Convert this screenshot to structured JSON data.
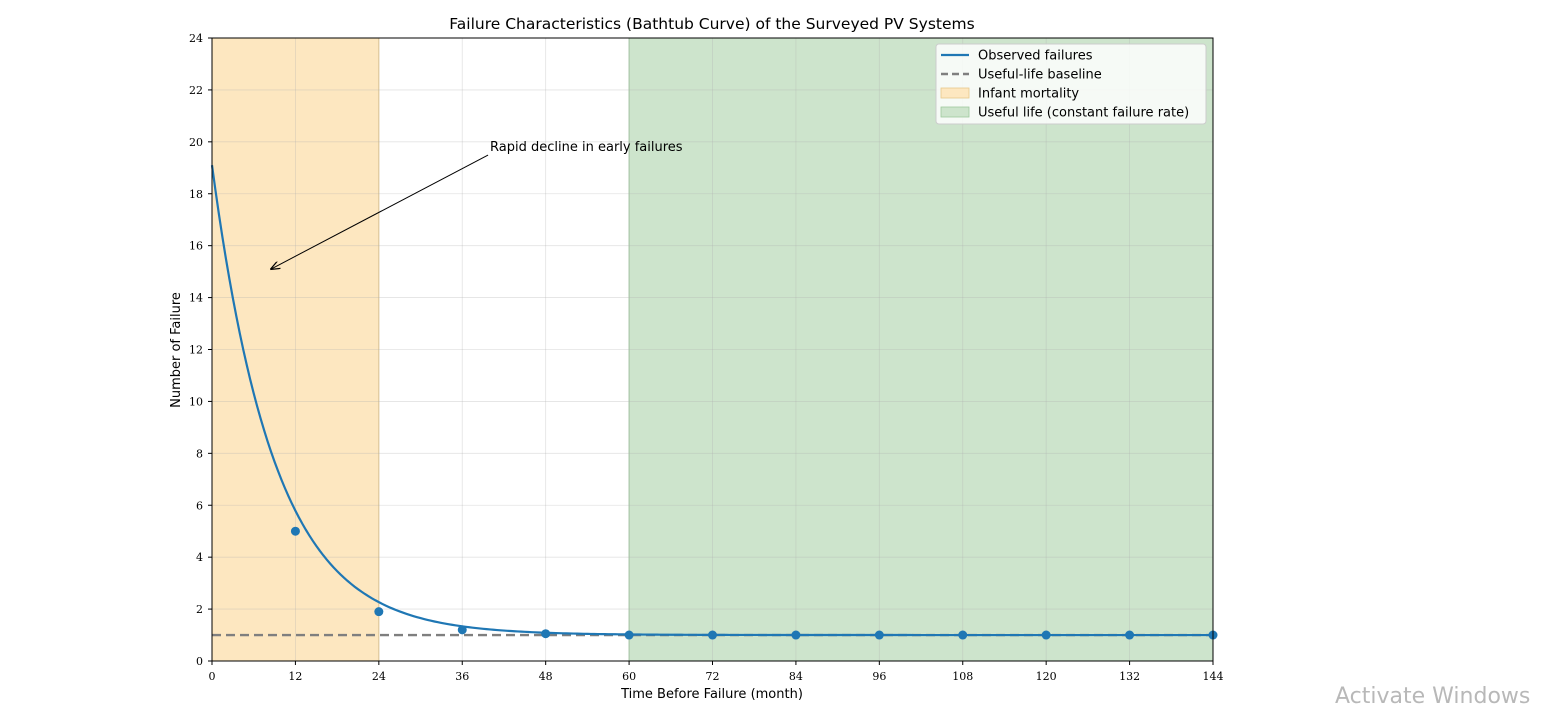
{
  "chart_data": {
    "type": "line",
    "title": "Failure Characteristics (Bathtub Curve) of the Surveyed PV Systems",
    "xlabel": "Time Before Failure (month)",
    "ylabel": "Number of Failure",
    "xlim": [
      0,
      144
    ],
    "ylim": [
      0,
      24
    ],
    "xticks": [
      0,
      12,
      24,
      36,
      48,
      60,
      72,
      84,
      96,
      108,
      120,
      132,
      144
    ],
    "yticks": [
      0,
      2,
      4,
      6,
      8,
      10,
      12,
      14,
      16,
      18,
      20,
      22,
      24
    ],
    "grid": true,
    "legend_position": "top-right",
    "series": [
      {
        "name": "Observed failures",
        "color": "#1f77b4",
        "curve": {
          "kind": "exponential-decay",
          "baseline": 1.0,
          "initial_excess": 18.1,
          "decay_rate": 0.1108
        },
        "points": [
          {
            "x": 12,
            "y": 5.0
          },
          {
            "x": 24,
            "y": 1.9
          },
          {
            "x": 36,
            "y": 1.2
          },
          {
            "x": 48,
            "y": 1.05
          },
          {
            "x": 60,
            "y": 1.0
          },
          {
            "x": 72,
            "y": 1.0
          },
          {
            "x": 84,
            "y": 1.0
          },
          {
            "x": 96,
            "y": 1.0
          },
          {
            "x": 108,
            "y": 1.0
          },
          {
            "x": 120,
            "y": 1.0
          },
          {
            "x": 132,
            "y": 1.0
          },
          {
            "x": 144,
            "y": 1.0
          }
        ]
      },
      {
        "name": "Useful-life baseline",
        "color": "#7f7f7f",
        "y": 1.0,
        "style": "dashed"
      }
    ],
    "regions": [
      {
        "name": "Infant mortality",
        "x_start": 0,
        "x_end": 24,
        "color": "#fde7c0",
        "edge": "#e8c98a"
      },
      {
        "name": "Useful life (constant failure rate)",
        "x_start": 60,
        "x_end": 144,
        "color": "#cde4cc",
        "edge": "#9ec89d"
      }
    ],
    "annotation": {
      "text": "Rapid decline in early failures",
      "text_at": {
        "x": 40,
        "y": 19.8
      },
      "arrow_to": {
        "x": 8.5,
        "y": 15.1
      }
    }
  },
  "overlay": {
    "watermark": "Activate Windows"
  }
}
